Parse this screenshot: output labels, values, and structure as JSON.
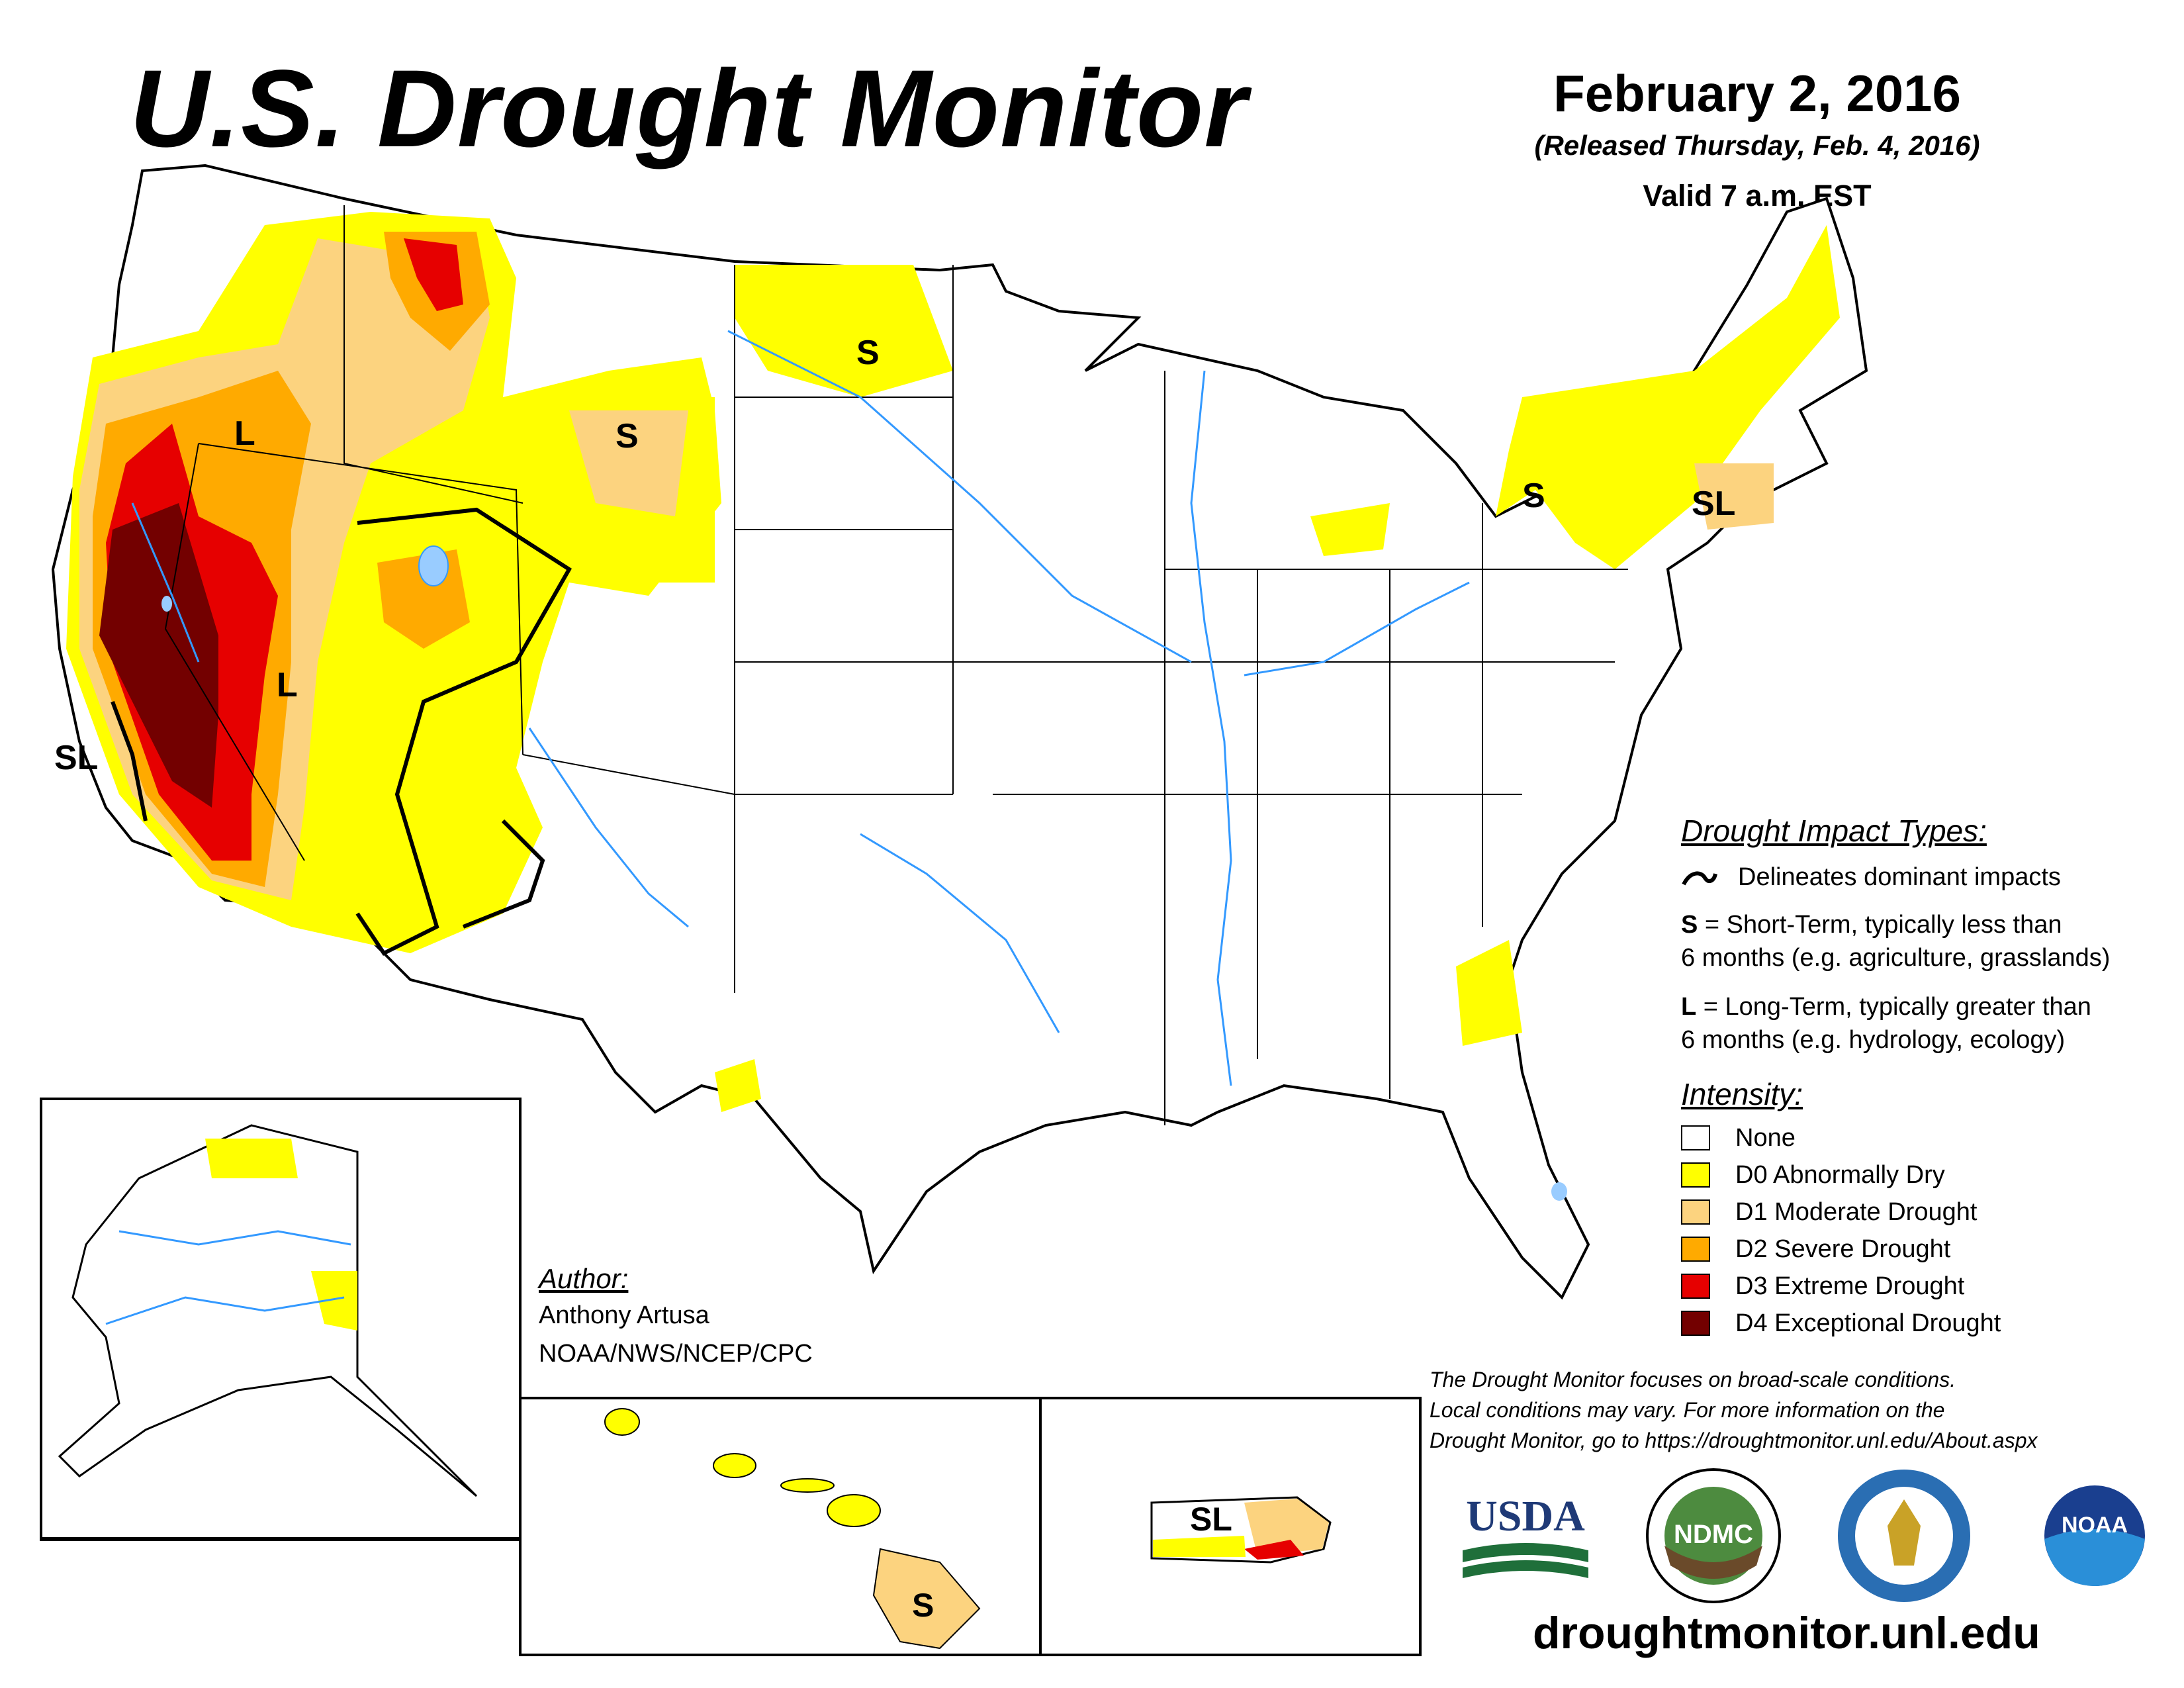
{
  "header": {
    "title": "U.S. Drought Monitor",
    "date": "February 2, 2016",
    "released": "(Released Thursday, Feb. 4, 2016)",
    "valid": "Valid 7 a.m. EST"
  },
  "map_labels": {
    "short_term": "S",
    "long_term": "L",
    "short_long": "SL"
  },
  "impact_types": {
    "heading": "Drought Impact Types:",
    "delineates": "Delineates dominant impacts",
    "s_code": "S",
    "s_line1": " = Short-Term, typically less than",
    "s_line2": "6 months (e.g. agriculture, grasslands)",
    "l_code": "L",
    "l_line1": " = Long-Term, typically greater than",
    "l_line2": "6 months (e.g. hydrology, ecology)"
  },
  "intensity": {
    "heading": "Intensity:",
    "levels": [
      {
        "label": "None",
        "color": "#ffffff"
      },
      {
        "label": "D0 Abnormally Dry",
        "color": "#ffff00"
      },
      {
        "label": "D1 Moderate Drought",
        "color": "#fcd37f"
      },
      {
        "label": "D2 Severe Drought",
        "color": "#ffaa00"
      },
      {
        "label": "D3 Extreme Drought",
        "color": "#e60000"
      },
      {
        "label": "D4 Exceptional Drought",
        "color": "#730000"
      }
    ]
  },
  "colors": {
    "river": "#3399ff",
    "lake": "#99ccff",
    "border": "#000000"
  },
  "author": {
    "heading": "Author:",
    "name": "Anthony Artusa",
    "org": "NOAA/NWS/NCEP/CPC"
  },
  "disclaimer": [
    "The Drought Monitor focuses on broad-scale conditions.",
    "Local conditions may vary. For more information on the",
    "Drought Monitor, go to https://droughtmonitor.unl.edu/About.aspx"
  ],
  "logos": {
    "usda": "USDA",
    "ndmc": "NDMC",
    "noaa": "NOAA"
  },
  "website": "droughtmonitor.unl.edu"
}
